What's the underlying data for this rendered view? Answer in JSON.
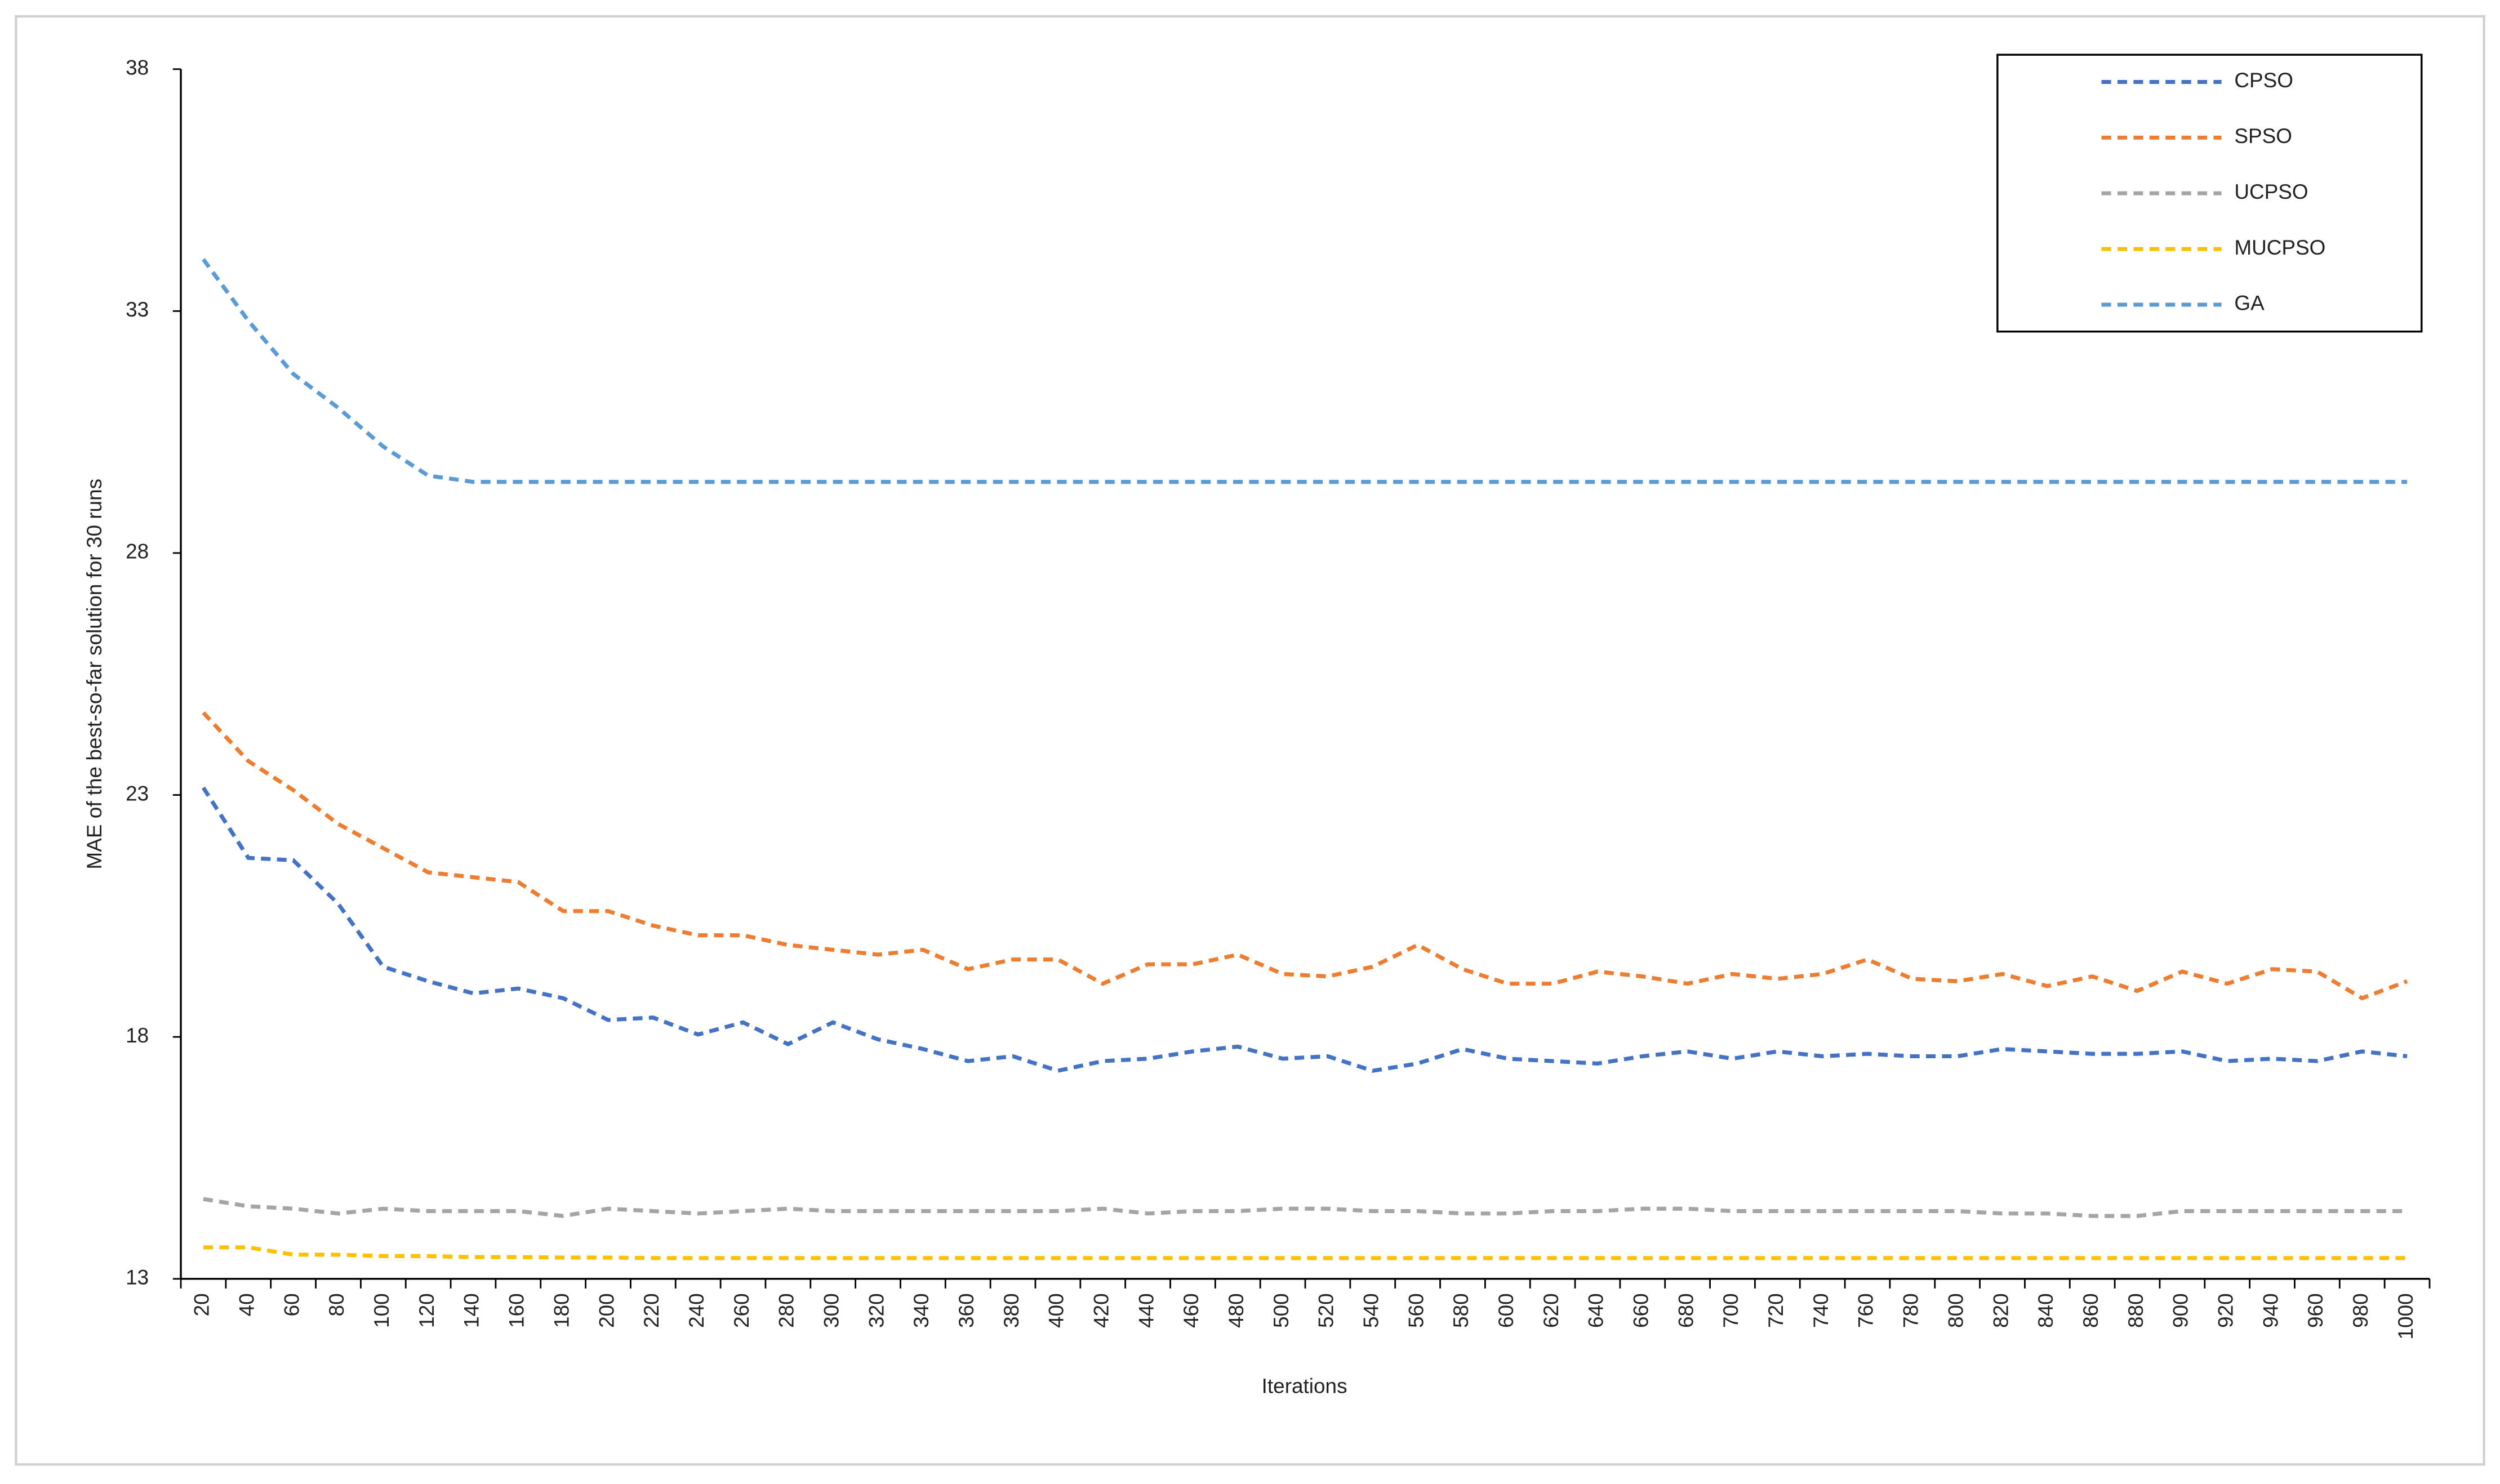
{
  "chart_data": {
    "type": "line",
    "x_label": "Iterations",
    "y_label": "MAE of the best-so-far solution for 30 runs",
    "categories": [
      20,
      40,
      60,
      80,
      100,
      120,
      140,
      160,
      180,
      200,
      220,
      240,
      260,
      280,
      300,
      320,
      340,
      360,
      380,
      400,
      420,
      440,
      460,
      480,
      500,
      520,
      540,
      560,
      580,
      600,
      620,
      640,
      660,
      680,
      700,
      720,
      740,
      760,
      780,
      800,
      820,
      840,
      860,
      880,
      900,
      920,
      940,
      960,
      980,
      1000
    ],
    "ylim": [
      13,
      38
    ],
    "yticks": [
      13,
      18,
      23,
      28,
      33,
      38
    ],
    "legend": "upper right",
    "series": [
      {
        "name": "CPSO",
        "color": "#4472c4",
        "values": [
          23.15,
          21.7,
          21.65,
          20.75,
          19.45,
          19.15,
          18.9,
          19.0,
          18.8,
          18.35,
          18.4,
          18.05,
          18.3,
          17.85,
          18.3,
          17.95,
          17.75,
          17.5,
          17.6,
          17.3,
          17.5,
          17.55,
          17.7,
          17.8,
          17.55,
          17.6,
          17.3,
          17.45,
          17.75,
          17.55,
          17.5,
          17.45,
          17.6,
          17.7,
          17.55,
          17.7,
          17.6,
          17.65,
          17.6,
          17.6,
          17.75,
          17.7,
          17.65,
          17.65,
          17.7,
          17.5,
          17.55,
          17.5,
          17.7,
          17.6
        ]
      },
      {
        "name": "SPSO",
        "color": "#ed7d31",
        "values": [
          24.7,
          23.7,
          23.1,
          22.4,
          21.9,
          21.4,
          21.3,
          21.2,
          20.6,
          20.6,
          20.3,
          20.1,
          20.1,
          19.9,
          19.8,
          19.7,
          19.8,
          19.4,
          19.6,
          19.6,
          19.1,
          19.5,
          19.5,
          19.7,
          19.3,
          19.25,
          19.45,
          19.9,
          19.4,
          19.1,
          19.1,
          19.35,
          19.25,
          19.1,
          19.3,
          19.2,
          19.3,
          19.6,
          19.2,
          19.15,
          19.3,
          19.05,
          19.25,
          18.95,
          19.35,
          19.1,
          19.4,
          19.35,
          18.8,
          19.15
        ]
      },
      {
        "name": "UCPSO",
        "color": "#a5a5a5",
        "values": [
          14.65,
          14.5,
          14.45,
          14.35,
          14.45,
          14.4,
          14.4,
          14.4,
          14.3,
          14.45,
          14.4,
          14.35,
          14.4,
          14.45,
          14.4,
          14.4,
          14.4,
          14.4,
          14.4,
          14.4,
          14.45,
          14.35,
          14.4,
          14.4,
          14.45,
          14.45,
          14.4,
          14.4,
          14.35,
          14.35,
          14.4,
          14.4,
          14.45,
          14.45,
          14.4,
          14.4,
          14.4,
          14.4,
          14.4,
          14.4,
          14.35,
          14.35,
          14.3,
          14.3,
          14.4,
          14.4,
          14.4,
          14.4,
          14.4,
          14.4
        ]
      },
      {
        "name": "MUCPSO",
        "color": "#ffc000",
        "values": [
          13.65,
          13.65,
          13.5,
          13.5,
          13.47,
          13.47,
          13.45,
          13.45,
          13.44,
          13.44,
          13.43,
          13.43,
          13.43,
          13.43,
          13.43,
          13.43,
          13.43,
          13.43,
          13.43,
          13.43,
          13.43,
          13.43,
          13.43,
          13.43,
          13.43,
          13.43,
          13.43,
          13.43,
          13.43,
          13.43,
          13.43,
          13.43,
          13.43,
          13.43,
          13.43,
          13.43,
          13.43,
          13.43,
          13.43,
          13.43,
          13.43,
          13.43,
          13.43,
          13.43,
          13.43,
          13.43,
          13.43,
          13.43,
          13.43,
          13.43
        ]
      },
      {
        "name": "GA",
        "color": "#5b9bd5",
        "values": [
          34.07,
          32.8,
          31.7,
          31.0,
          30.2,
          29.6,
          29.47,
          29.47,
          29.47,
          29.47,
          29.47,
          29.47,
          29.47,
          29.47,
          29.47,
          29.47,
          29.47,
          29.47,
          29.47,
          29.47,
          29.47,
          29.47,
          29.47,
          29.47,
          29.47,
          29.47,
          29.47,
          29.47,
          29.47,
          29.47,
          29.47,
          29.47,
          29.47,
          29.47,
          29.47,
          29.47,
          29.47,
          29.47,
          29.47,
          29.47,
          29.47,
          29.47,
          29.47,
          29.47,
          29.47,
          29.47,
          29.47,
          29.47,
          29.47,
          29.47
        ]
      }
    ]
  }
}
